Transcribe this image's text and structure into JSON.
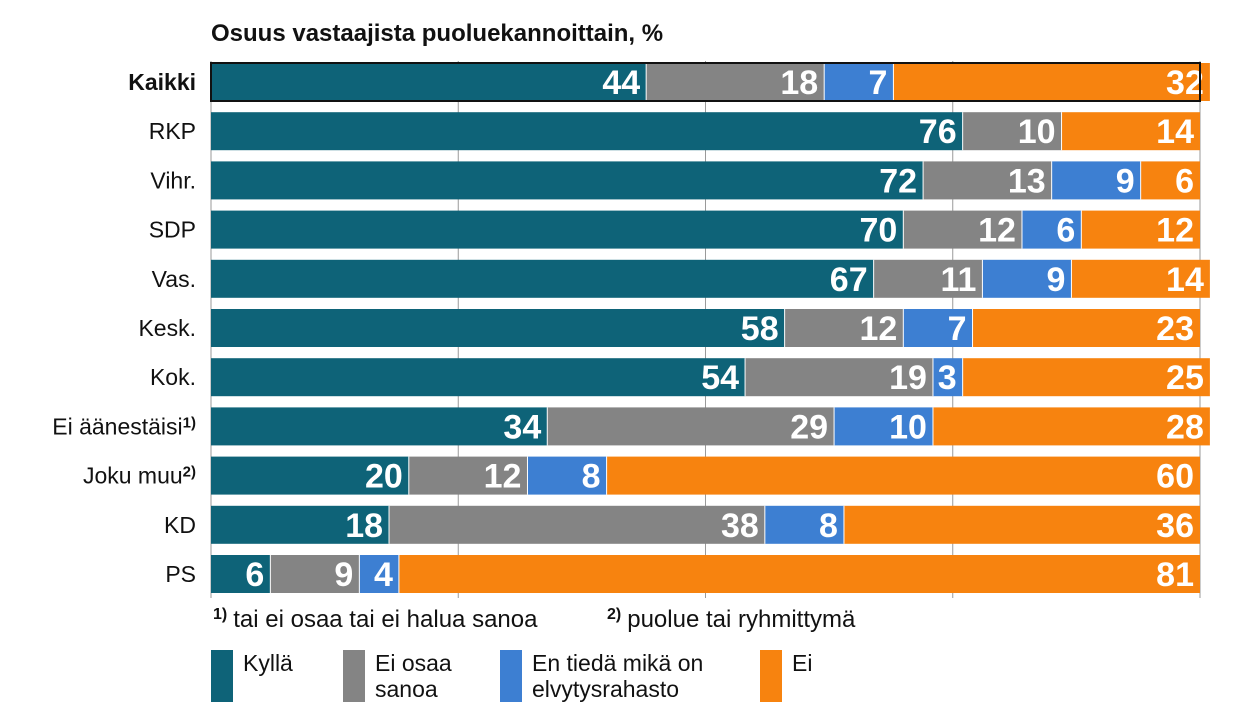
{
  "chart_data": {
    "type": "bar",
    "orientation": "horizontal",
    "stacked": true,
    "title": "Osuus vastaajista puoluekannoittain, %",
    "categories": [
      "Kaikki",
      "RKP",
      "Vihr.",
      "SDP",
      "Vas.",
      "Kesk.",
      "Kok.",
      "Ei äänestäisi",
      "Joku muu",
      "KD",
      "PS"
    ],
    "category_superscripts": [
      "",
      "",
      "",
      "",
      "",
      "",
      "",
      "1)",
      "2)",
      "",
      ""
    ],
    "series": [
      {
        "name": "Kyllä",
        "color": "#0e6378",
        "values": [
          44,
          76,
          72,
          70,
          67,
          58,
          54,
          34,
          20,
          18,
          6
        ]
      },
      {
        "name": "Ei osaa sanoa",
        "color": "#848484",
        "values": [
          18,
          10,
          13,
          12,
          11,
          12,
          19,
          29,
          12,
          38,
          9
        ]
      },
      {
        "name": "En tiedä mikä on elvytysrahasto",
        "color": "#3d7fd2",
        "values": [
          7,
          0,
          9,
          6,
          9,
          7,
          3,
          10,
          8,
          8,
          4
        ]
      },
      {
        "name": "Ei",
        "color": "#f7830f",
        "values": [
          32,
          14,
          6,
          12,
          14,
          23,
          25,
          28,
          60,
          36,
          81
        ]
      }
    ],
    "xlim": [
      0,
      100
    ],
    "grid": true,
    "footnotes": [
      {
        "marker": "1)",
        "text": "tai ei osaa tai ei halua sanoa"
      },
      {
        "marker": "2)",
        "text": "puolue tai ryhmittymä"
      }
    ]
  }
}
